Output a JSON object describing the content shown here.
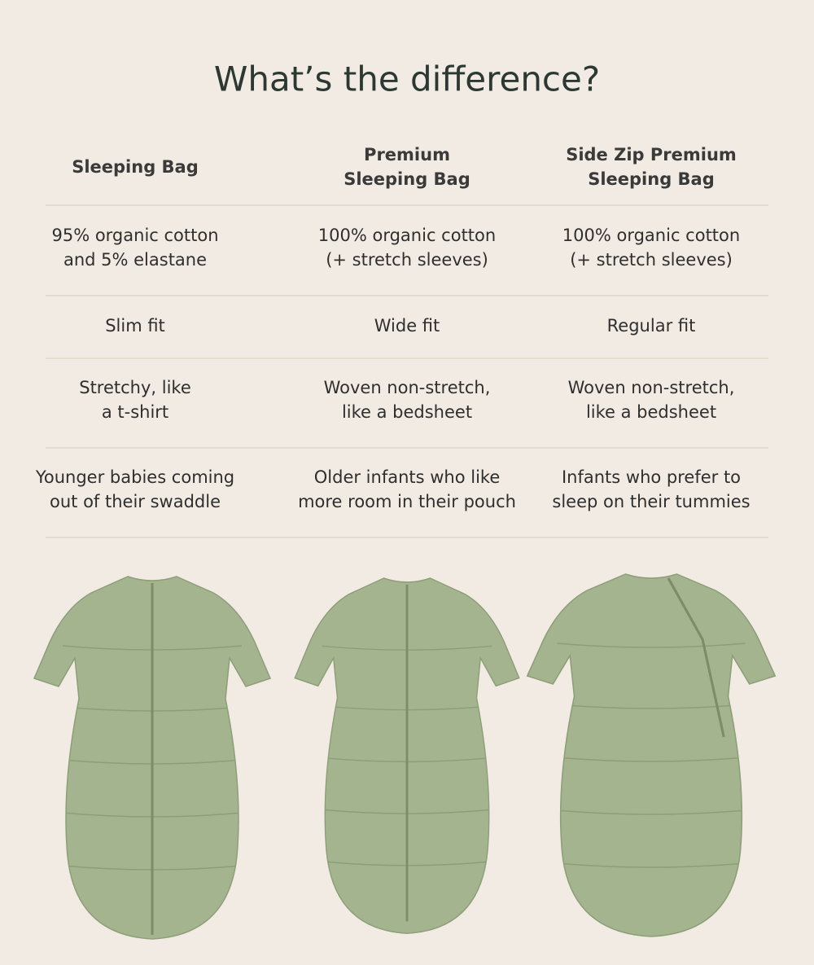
{
  "title": "What’s the difference?",
  "table": {
    "header": [
      [
        "Sleeping Bag"
      ],
      [
        "Premium",
        "Sleeping Bag"
      ],
      [
        "Side Zip Premium",
        "Sleeping Bag"
      ]
    ],
    "rows": [
      [
        [
          "95% organic cotton",
          "and 5% elastane"
        ],
        [
          "100% organic cotton",
          "(+ stretch sleeves)"
        ],
        [
          "100% organic cotton",
          "(+ stretch sleeves)"
        ]
      ],
      [
        [
          "Slim fit"
        ],
        [
          "Wide fit"
        ],
        [
          "Regular fit"
        ]
      ],
      [
        [
          "Stretchy, like",
          "a t-shirt"
        ],
        [
          "Woven non-stretch,",
          "like a bedsheet"
        ],
        [
          "Woven non-stretch,",
          "like a bedsheet"
        ]
      ],
      [
        [
          "Younger babies coming",
          "out of their swaddle"
        ],
        [
          "Older infants who like",
          "more room in their pouch"
        ],
        [
          "Infants who prefer to",
          "sleep on their tummies"
        ]
      ]
    ]
  }
}
